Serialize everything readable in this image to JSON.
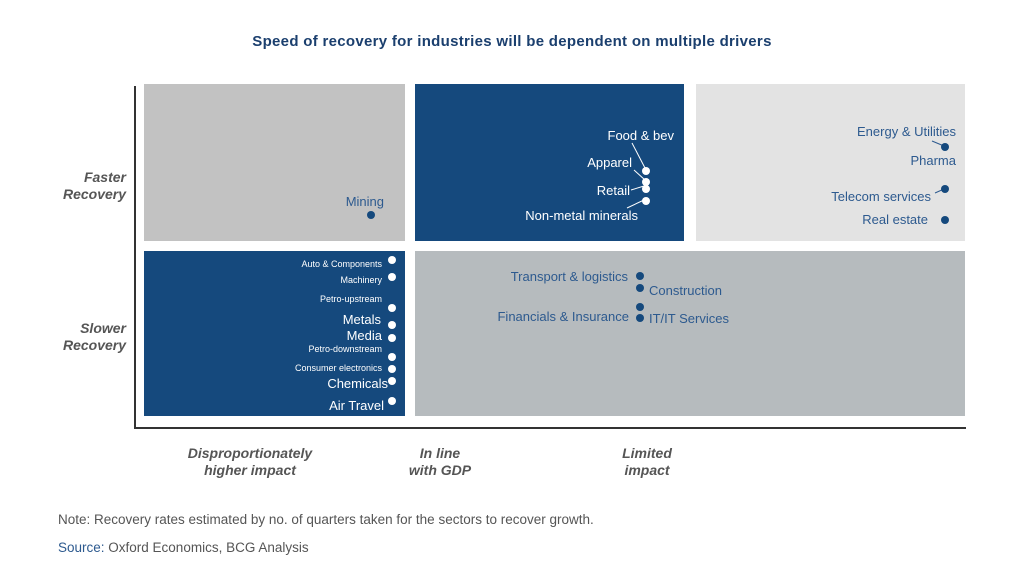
{
  "title": "Speed of recovery for industries will be dependent on multiple drivers",
  "y_axis": {
    "top": "Faster\nRecovery",
    "bottom": "Slower\nRecovery"
  },
  "x_axis": {
    "left": "Disproportionately\nhigher impact",
    "middle": "In line\nwith GDP",
    "right": "Limited\nimpact"
  },
  "quadrants": {
    "faster_high_impact": [
      "Mining"
    ],
    "faster_gdp": [
      "Food & bev",
      "Apparel",
      "Retail",
      "Non-metal minerals"
    ],
    "faster_limited": [
      "Energy & Utilities",
      "Pharma",
      "Telecom services",
      "Real estate"
    ],
    "slower_high_impact": [
      "Auto & Components",
      "Machinery",
      "Petro-upstream",
      "Metals",
      "Media",
      "Petro-downstream",
      "Consumer electronics",
      "Chemicals",
      "Air Travel"
    ],
    "slower_gdp_limited": [
      "Transport & logistics",
      "Construction",
      "Financials & Insurance",
      "IT/IT Services"
    ]
  },
  "colors": {
    "dark_blue": "#15497d",
    "grey": "#c2c2c2",
    "light_grey": "#e3e3e3",
    "slate": "#b6bbbe"
  },
  "note": "Note: Recovery rates estimated by no. of quarters taken for the sectors to recover growth.",
  "source": {
    "key": "Source:",
    "value": " Oxford Economics, BCG Analysis"
  }
}
